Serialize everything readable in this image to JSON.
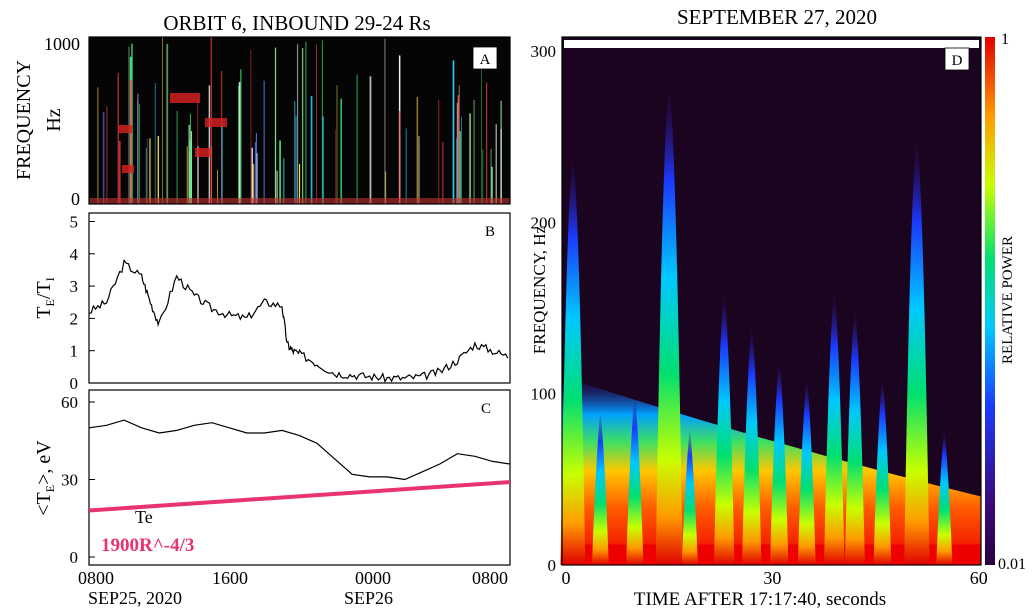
{
  "left_title": "ORBIT 6, INBOUND 29-24 Rs",
  "right_title": "SEPTEMBER 27, 2020",
  "panels": {
    "a": {
      "letter": "A",
      "ylabel1": "FREQUENCY",
      "ylabel2": "Hz"
    },
    "b": {
      "letter": "B"
    },
    "c": {
      "letter": "C",
      "legend_te": "Te",
      "legend_fit": "1900R^-4/3"
    },
    "d": {
      "letter": "D",
      "ylabel": "FREQUENCY, Hz",
      "xlabel": "TIME AFTER 17:17:40, seconds",
      "colorbar_label": "RELATIVE POWER",
      "colorbar_max": "1",
      "colorbar_min": "0.01"
    }
  },
  "bottom_axis": {
    "ticks": [
      "0800",
      "1600",
      "0000",
      "0800"
    ],
    "dates": [
      "SEP25, 2020",
      "SEP26"
    ]
  },
  "colors": {
    "te_line": "#000000",
    "fit_line": "#e8336f",
    "spectrogram_bg": "#1a0420"
  },
  "chart_data": [
    {
      "panel": "A",
      "type": "heatmap",
      "ylabel": "FREQUENCY Hz",
      "ylim": [
        0,
        1000
      ],
      "yticks": [
        "0",
        "1000"
      ],
      "xticks": [
        "0800",
        "1600",
        "0000",
        "0800"
      ]
    },
    {
      "panel": "B",
      "type": "line",
      "ylim": [
        0,
        5
      ],
      "yticks": [
        "0",
        "1",
        "2",
        "3",
        "4",
        "5"
      ],
      "xticks": [
        "0800",
        "1600",
        "0000",
        "0800"
      ],
      "series": [
        {
          "x": [
            0,
            1,
            2,
            3,
            3.5,
            4,
            5,
            6,
            7,
            8,
            9,
            10,
            11,
            11.3,
            11.6,
            12,
            13,
            14,
            15,
            16,
            17,
            18,
            19,
            20,
            21,
            22,
            23,
            24
          ],
          "values": [
            2.2,
            2.5,
            3.7,
            3.3,
            2.5,
            1.8,
            3.3,
            2.7,
            2.3,
            2.1,
            2.0,
            2.5,
            2.4,
            1.2,
            1.0,
            0.9,
            0.6,
            0.3,
            0.25,
            0.2,
            0.15,
            0.15,
            0.2,
            0.35,
            0.7,
            1.2,
            1.0,
            0.8
          ]
        }
      ]
    },
    {
      "panel": "C",
      "type": "line",
      "ylim": [
        0,
        60
      ],
      "yticks": [
        "0",
        "30",
        "60"
      ],
      "xticks": [
        "0800",
        "1600",
        "0000",
        "0800"
      ],
      "series": [
        {
          "name": "Te",
          "x": [
            0,
            1,
            2,
            3,
            4,
            5,
            6,
            7,
            8,
            9,
            10,
            11,
            12,
            13,
            14,
            15,
            16,
            17,
            18,
            19,
            20,
            21,
            22,
            23,
            24
          ],
          "values": [
            50,
            51,
            53,
            50,
            48,
            49,
            51,
            52,
            50,
            48,
            48,
            49,
            47,
            44,
            38,
            32,
            31,
            31,
            30,
            33,
            36,
            40,
            39,
            37,
            36
          ]
        },
        {
          "name": "1900R^-4/3",
          "x": [
            0,
            24
          ],
          "values": [
            18,
            29
          ]
        }
      ]
    },
    {
      "panel": "D",
      "type": "heatmap",
      "xlabel": "TIME AFTER 17:17:40, seconds",
      "ylabel": "FREQUENCY, Hz",
      "xlim": [
        0,
        60
      ],
      "ylim": [
        0,
        300
      ],
      "xticks": [
        "0",
        "30",
        "60"
      ],
      "yticks": [
        "0",
        "100",
        "200",
        "300"
      ],
      "colorbar": {
        "label": "RELATIVE POWER",
        "min": 0.01,
        "max": 1
      },
      "series": [
        {
          "name": "peaks",
          "x": [
            1,
            5,
            10,
            15,
            18,
            23,
            27,
            31,
            35,
            39,
            42,
            46,
            51,
            55
          ],
          "values": [
            240,
            90,
            100,
            280,
            80,
            160,
            140,
            120,
            110,
            160,
            150,
            110,
            250,
            80
          ]
        }
      ]
    }
  ]
}
